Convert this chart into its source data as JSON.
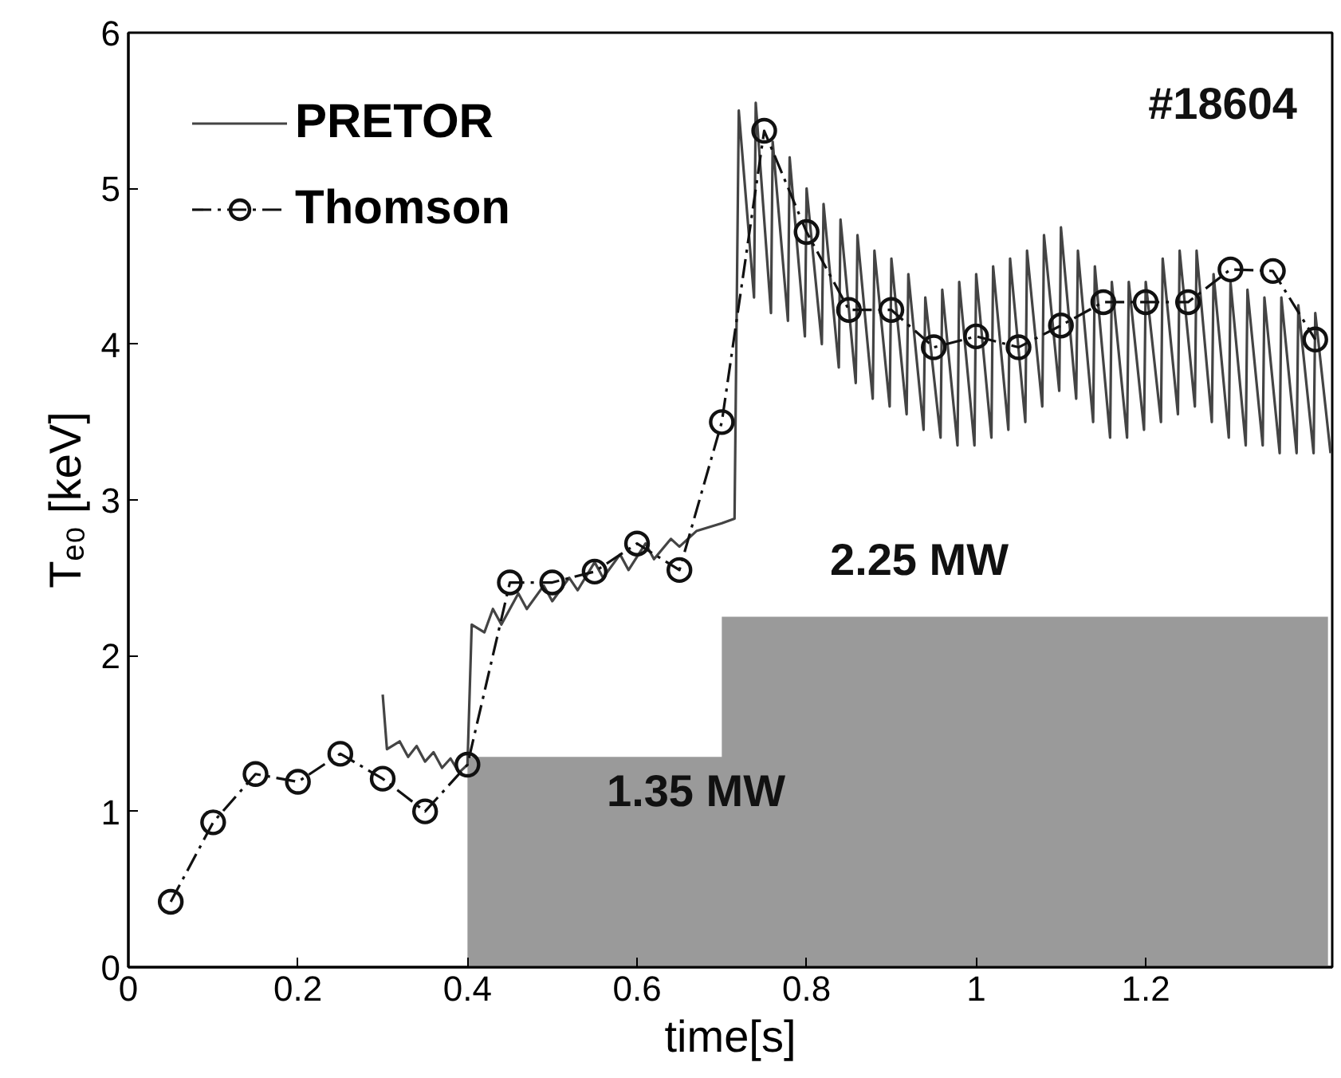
{
  "chart_data": {
    "type": "line",
    "xlabel": "time[s]",
    "ylabel": "Tₑ₀ [keV]",
    "xlim": [
      0,
      1.42
    ],
    "ylim": [
      0,
      6
    ],
    "xticks": [
      0,
      0.2,
      0.4,
      0.6,
      0.8,
      1,
      1.2
    ],
    "yticks": [
      0,
      1,
      2,
      3,
      4,
      5,
      6
    ],
    "grid": false,
    "legend": "top left",
    "series": [
      {
        "type": "area",
        "color": "#9a9a9a",
        "x": [
          0.4,
          0.4,
          0.7,
          0.7,
          1.415,
          1.415
        ],
        "values": [
          0,
          1.35,
          1.35,
          2.25,
          2.25,
          0
        ]
      },
      {
        "name": "PRETOR",
        "color": "#444444",
        "marker": "none",
        "line_style": "solid",
        "x": [
          0.3,
          0.305,
          0.32,
          0.33,
          0.34,
          0.35,
          0.36,
          0.37,
          0.38,
          0.39,
          0.4,
          0.405,
          0.42,
          0.43,
          0.44,
          0.46,
          0.47,
          0.49,
          0.5,
          0.52,
          0.53,
          0.55,
          0.56,
          0.58,
          0.59,
          0.61,
          0.62,
          0.64,
          0.65,
          0.67,
          0.7,
          0.715,
          0.72,
          0.738,
          0.74,
          0.758,
          0.76,
          0.778,
          0.78,
          0.798,
          0.8,
          0.818,
          0.82,
          0.838,
          0.84,
          0.858,
          0.86,
          0.878,
          0.88,
          0.898,
          0.9,
          0.918,
          0.92,
          0.938,
          0.94,
          0.958,
          0.96,
          0.978,
          0.98,
          0.998,
          1.0,
          1.018,
          1.02,
          1.038,
          1.04,
          1.058,
          1.06,
          1.078,
          1.08,
          1.098,
          1.1,
          1.118,
          1.12,
          1.138,
          1.14,
          1.158,
          1.16,
          1.178,
          1.18,
          1.198,
          1.2,
          1.218,
          1.22,
          1.238,
          1.24,
          1.258,
          1.26,
          1.278,
          1.28,
          1.298,
          1.3,
          1.318,
          1.32,
          1.338,
          1.34,
          1.358,
          1.36,
          1.378,
          1.38,
          1.398,
          1.4,
          1.418
        ],
        "values": [
          1.75,
          1.4,
          1.45,
          1.35,
          1.42,
          1.32,
          1.38,
          1.28,
          1.34,
          1.25,
          1.3,
          2.2,
          2.15,
          2.3,
          2.2,
          2.4,
          2.3,
          2.45,
          2.35,
          2.5,
          2.42,
          2.6,
          2.5,
          2.65,
          2.55,
          2.72,
          2.62,
          2.75,
          2.7,
          2.8,
          2.85,
          2.88,
          5.5,
          4.3,
          5.55,
          4.2,
          5.3,
          4.15,
          5.2,
          4.05,
          5.0,
          4.0,
          4.9,
          3.85,
          4.8,
          3.75,
          4.7,
          3.65,
          4.6,
          3.6,
          4.55,
          3.55,
          4.45,
          3.45,
          4.3,
          3.4,
          4.35,
          3.35,
          4.4,
          3.35,
          4.45,
          3.4,
          4.5,
          3.45,
          4.55,
          3.5,
          4.6,
          3.6,
          4.7,
          3.7,
          4.75,
          3.65,
          4.6,
          3.5,
          4.5,
          3.4,
          4.4,
          3.4,
          4.4,
          3.45,
          4.4,
          3.5,
          4.55,
          3.55,
          4.6,
          3.6,
          4.6,
          3.5,
          4.45,
          3.4,
          4.4,
          3.35,
          4.35,
          3.35,
          4.3,
          3.3,
          4.3,
          3.3,
          4.25,
          3.3,
          4.2,
          3.3
        ]
      },
      {
        "name": "Thomson",
        "color": "#111111",
        "marker": "circle",
        "line_style": "dashed",
        "x": [
          0.05,
          0.1,
          0.15,
          0.2,
          0.25,
          0.3,
          0.35,
          0.4,
          0.45,
          0.5,
          0.55,
          0.6,
          0.65,
          0.7,
          0.75,
          0.8,
          0.85,
          0.9,
          0.95,
          1.0,
          1.05,
          1.1,
          1.15,
          1.2,
          1.25,
          1.3,
          1.35,
          1.4
        ],
        "values": [
          0.42,
          0.93,
          1.24,
          1.19,
          1.37,
          1.21,
          1.0,
          1.3,
          2.47,
          2.47,
          2.54,
          2.72,
          2.55,
          3.5,
          5.37,
          4.72,
          4.22,
          4.22,
          3.98,
          4.05,
          3.98,
          4.12,
          4.27,
          4.27,
          4.27,
          4.48,
          4.47,
          4.03
        ]
      }
    ],
    "annotations": [
      "1.35 MW",
      "2.25 MW",
      "#18604"
    ]
  }
}
